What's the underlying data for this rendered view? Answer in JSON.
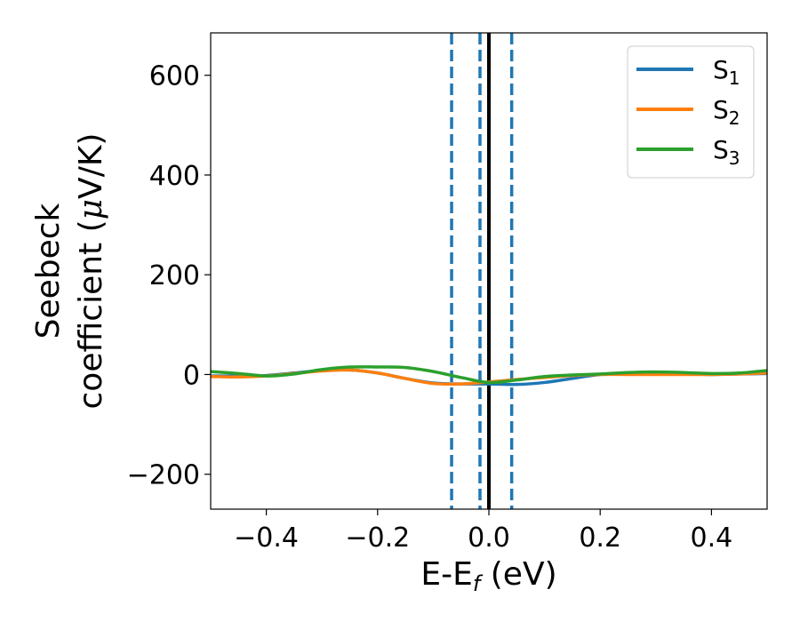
{
  "chart_data": {
    "type": "line",
    "title": "",
    "xlabel": {
      "base": "E-E",
      "sub": "f",
      "rest": " (eV)"
    },
    "ylabel": {
      "line1": "Seebeck",
      "line2_a": "coefficient  (",
      "line2_mu": "μ",
      "line2_b": "V/K)"
    },
    "xlim": [
      -0.5,
      0.5
    ],
    "ylim": [
      -270,
      685
    ],
    "xticks": [
      -0.4,
      -0.2,
      0.0,
      0.2,
      0.4
    ],
    "xtick_labels": [
      "−0.4",
      "−0.2",
      "0.0",
      "0.2",
      "0.4"
    ],
    "yticks": [
      -200,
      0,
      200,
      400,
      600
    ],
    "ytick_labels": [
      "−200",
      "0",
      "200",
      "400",
      "600"
    ],
    "grid": false,
    "legend_position": "top-right",
    "series": [
      {
        "name": "S1",
        "name_base": "S",
        "name_sub": "1",
        "color": "#1f77b4",
        "x": [
          -0.5,
          -0.45,
          -0.4,
          -0.35,
          -0.3,
          -0.25,
          -0.2,
          -0.15,
          -0.1,
          -0.05,
          0.0,
          0.05,
          0.1,
          0.15,
          0.2,
          0.25,
          0.3,
          0.35,
          0.4,
          0.45,
          0.5
        ],
        "y": [
          -3,
          -3,
          -2,
          3,
          8,
          9,
          3,
          -8,
          -17,
          -19,
          -19,
          -20,
          -16,
          -8,
          0,
          1,
          1,
          1,
          0,
          1,
          2
        ]
      },
      {
        "name": "S2",
        "name_base": "S",
        "name_sub": "2",
        "color": "#ff7f0e",
        "x": [
          -0.5,
          -0.45,
          -0.4,
          -0.35,
          -0.3,
          -0.25,
          -0.2,
          -0.15,
          -0.1,
          -0.05,
          0.0,
          0.05,
          0.1,
          0.15,
          0.2,
          0.25,
          0.3,
          0.35,
          0.4,
          0.45,
          0.5
        ],
        "y": [
          -4,
          -5,
          -3,
          2,
          7,
          9,
          3,
          -8,
          -18,
          -19,
          -15,
          -10,
          -6,
          -2,
          0,
          0,
          0,
          0,
          0,
          1,
          3
        ]
      },
      {
        "name": "S3",
        "name_base": "S",
        "name_sub": "3",
        "color": "#2ca02c",
        "x": [
          -0.5,
          -0.45,
          -0.4,
          -0.35,
          -0.3,
          -0.25,
          -0.2,
          -0.15,
          -0.1,
          -0.05,
          0.0,
          0.05,
          0.1,
          0.15,
          0.2,
          0.25,
          0.3,
          0.35,
          0.4,
          0.45,
          0.5
        ],
        "y": [
          6,
          2,
          -3,
          1,
          10,
          15,
          15,
          14,
          6,
          -6,
          -16,
          -11,
          -4,
          -1,
          1,
          4,
          5,
          4,
          2,
          3,
          8
        ]
      }
    ],
    "vlines": [
      {
        "x": -0.067,
        "style": "dashed",
        "color": "#1f77b4"
      },
      {
        "x": -0.016,
        "style": "dashed",
        "color": "#1f77b4"
      },
      {
        "x": 0.0,
        "style": "solid",
        "color": "#000000"
      },
      {
        "x": 0.041,
        "style": "dashed",
        "color": "#1f77b4"
      }
    ]
  }
}
